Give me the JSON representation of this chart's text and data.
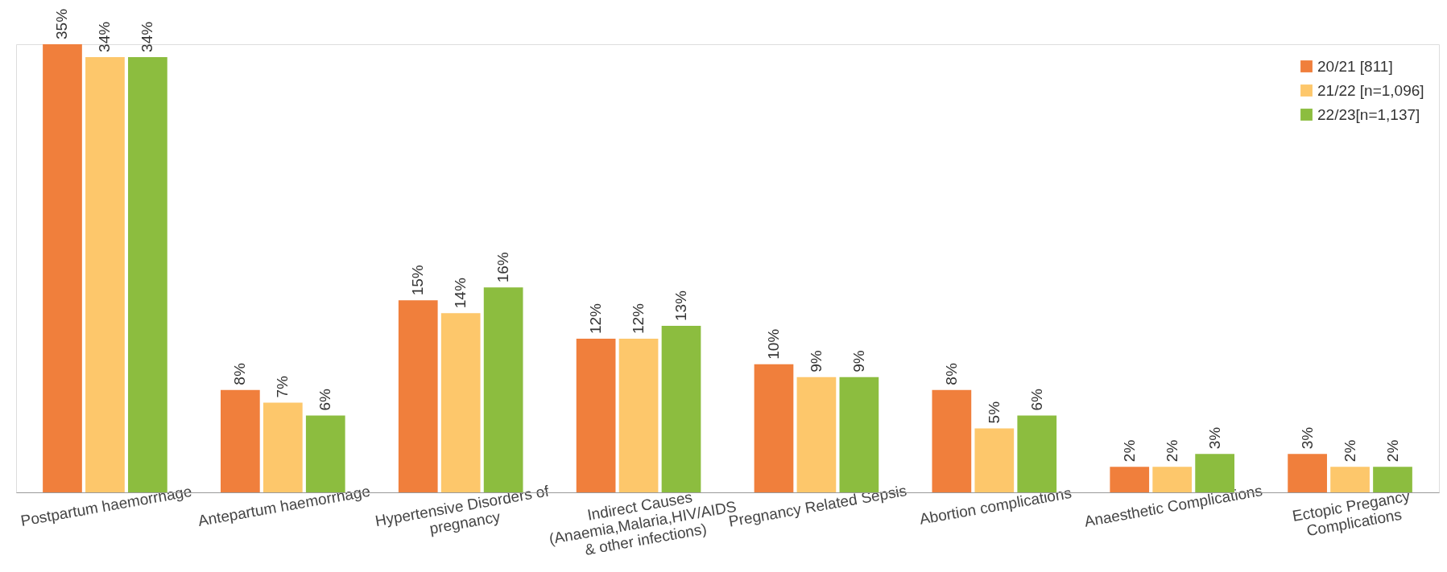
{
  "chart_data": {
    "type": "bar",
    "categories": [
      "Postpartum haemorrhage",
      "Antepartum haemorrhage",
      "Hypertensive Disorders of pregnancy",
      "Indirect Causes (Anaemia,Malaria,HIV/AIDS & other infections)",
      "Pregnancy Related Sepsis",
      "Abortion complications",
      "Anaesthetic Complications",
      "Ectopic Pregancy Complications"
    ],
    "series": [
      {
        "name": "20/21 [811]",
        "color": "#f07f3c",
        "values": [
          35,
          8,
          15,
          12,
          10,
          8,
          2,
          3
        ],
        "value_labels": [
          "35%",
          "8%",
          "15%",
          "12%",
          "10%",
          "8%",
          "2%",
          "3%"
        ]
      },
      {
        "name": "21/22 [n=1,096]",
        "color": "#fdc76b",
        "values": [
          34,
          7,
          14,
          12,
          9,
          5,
          2,
          2
        ],
        "value_labels": [
          "34%",
          "7%",
          "14%",
          "12%",
          "9%",
          "5%",
          "2%",
          "2%"
        ]
      },
      {
        "name": "22/23[n=1,137]",
        "color": "#8cbd3f",
        "values": [
          34,
          6,
          16,
          13,
          9,
          6,
          3,
          2
        ],
        "value_labels": [
          "34%",
          "6%",
          "16%",
          "13%",
          "9%",
          "6%",
          "3%",
          "2%"
        ]
      }
    ],
    "legend": "top right",
    "grid": false
  }
}
